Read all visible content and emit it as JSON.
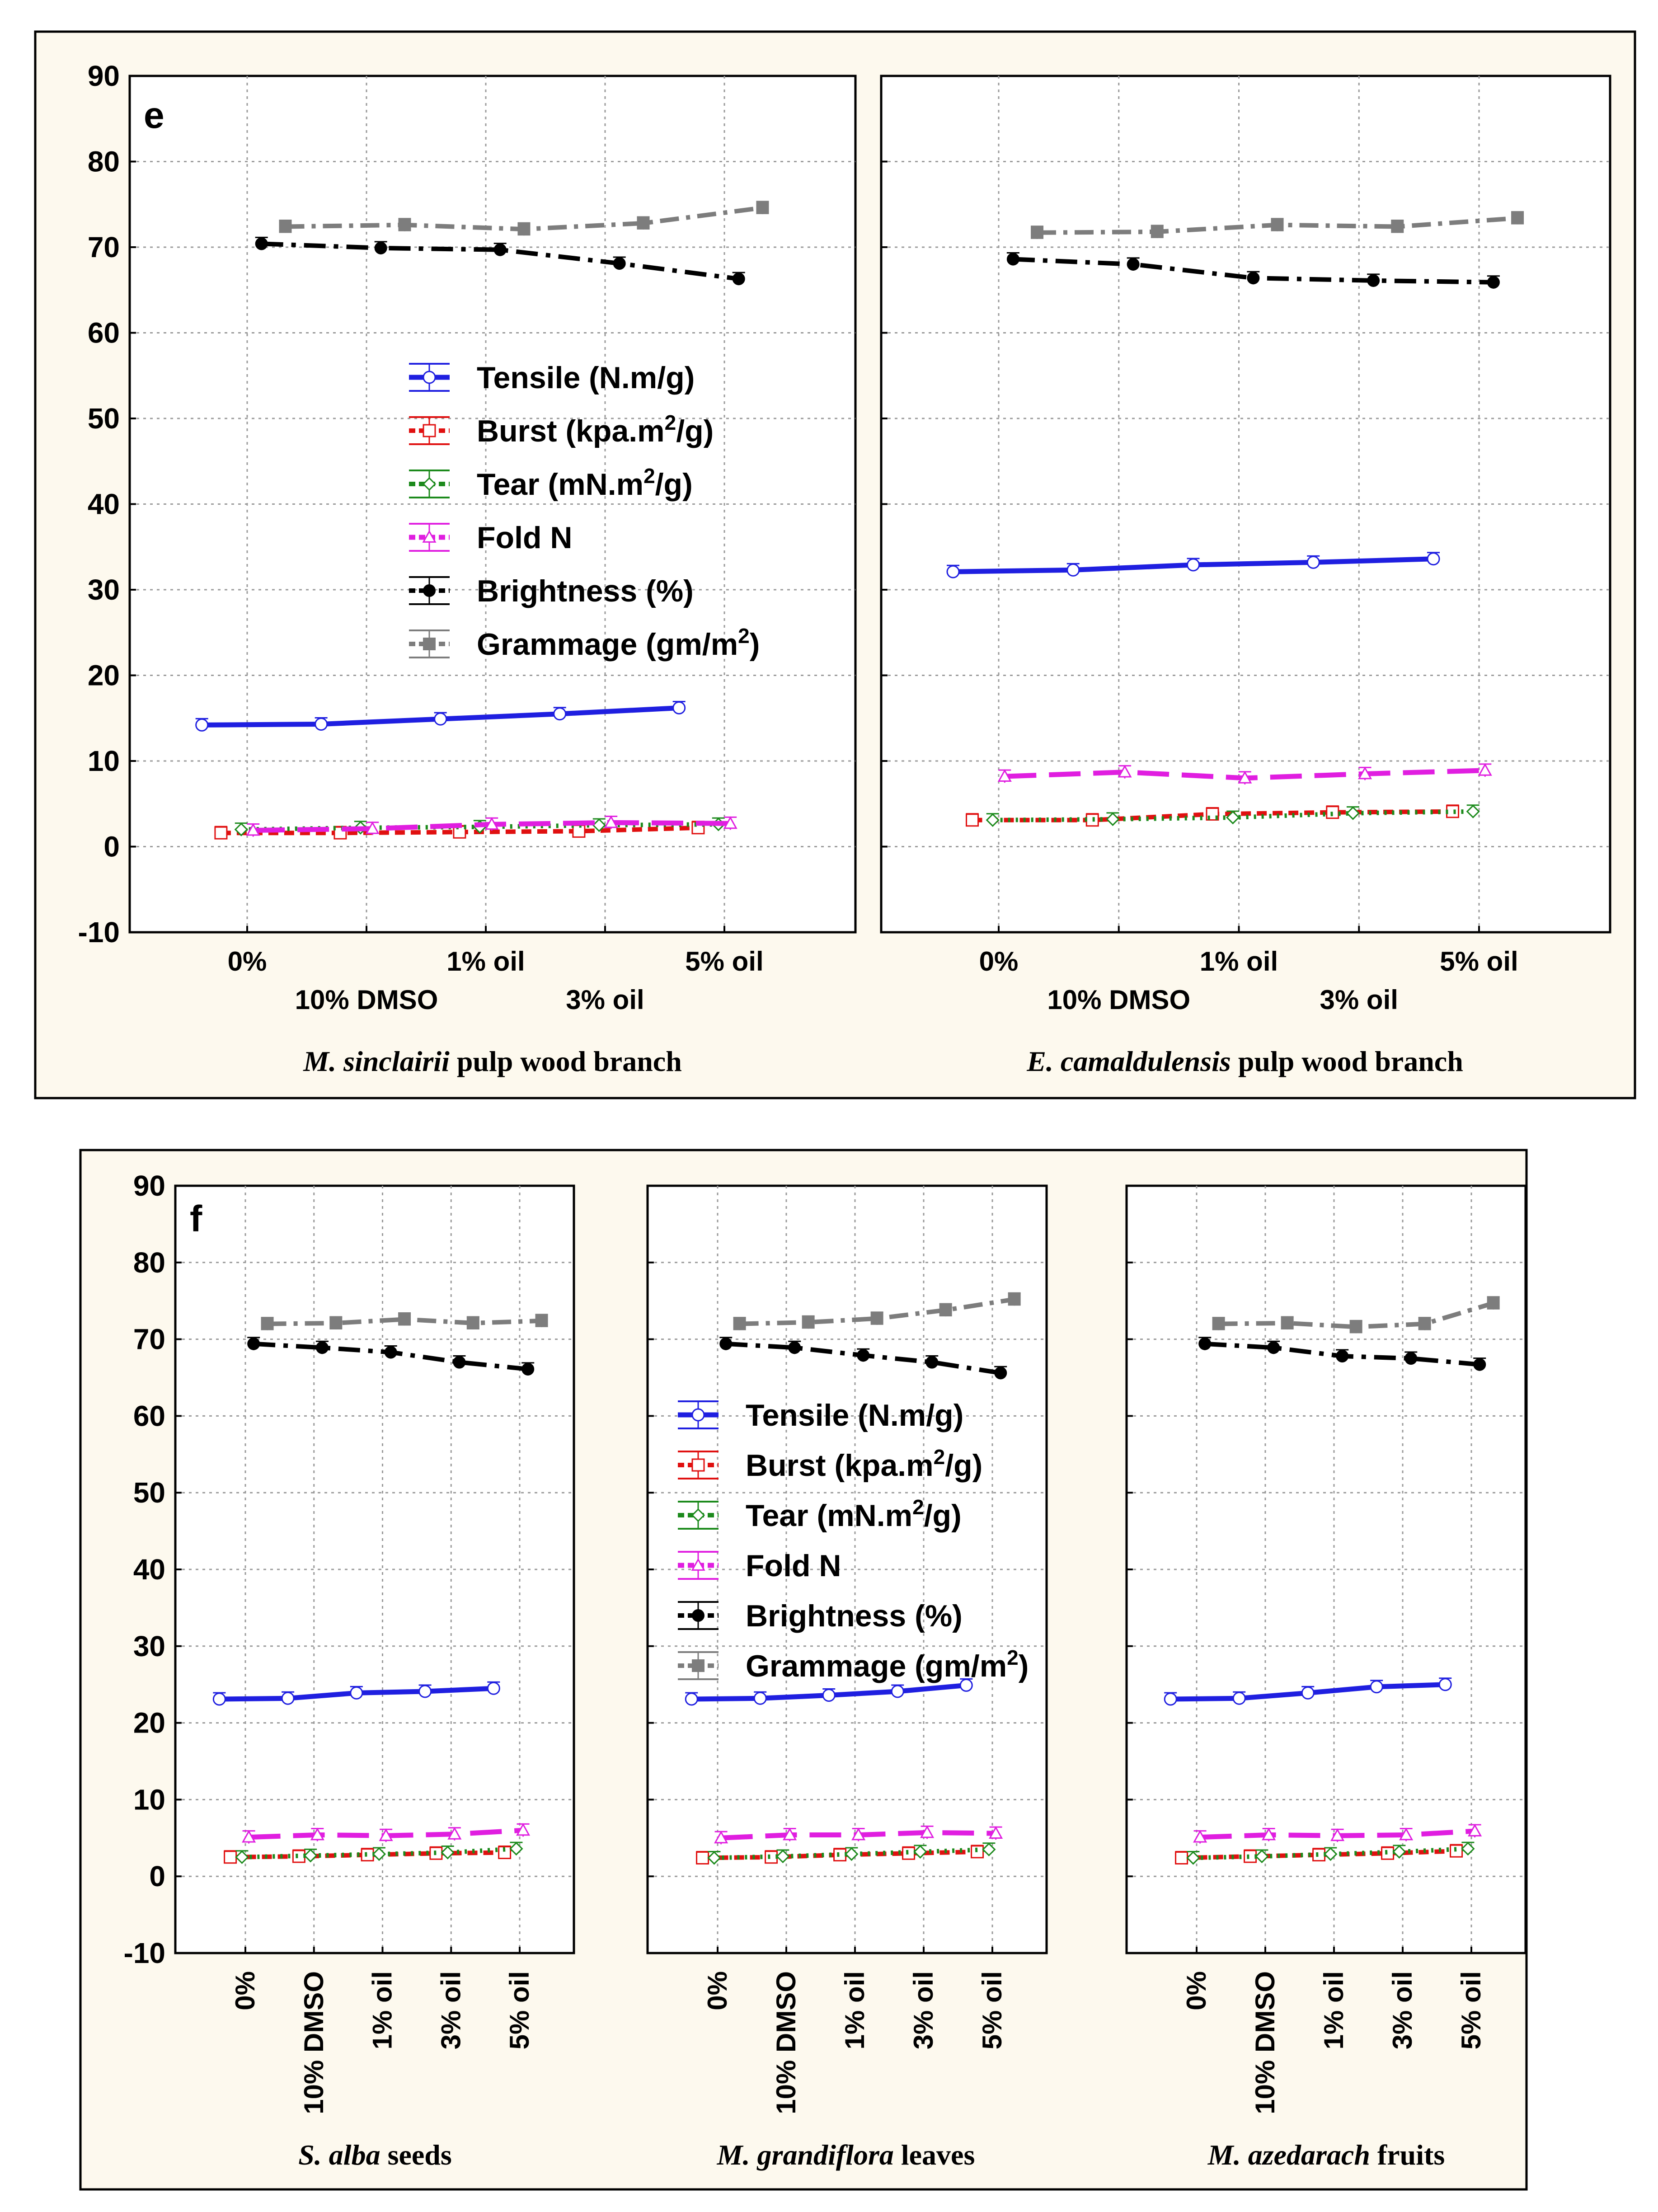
{
  "colors": {
    "Tensile": "#1f1fe0",
    "Burst": "#e01010",
    "Tear": "#1c8a1c",
    "Fold": "#e01ee0",
    "Brightness": "#000000",
    "Grammage": "#7d7d7d"
  },
  "figures": {
    "e": {
      "label": "e",
      "y_ticks": [
        "90",
        "80",
        "70",
        "60",
        "50",
        "40",
        "30",
        "20",
        "10",
        "0",
        "-10"
      ],
      "x_tick_labels": [
        "0%",
        "10% DMSO",
        "1% oil",
        "3% oil",
        "5% oil"
      ],
      "legend": [
        {
          "key": "Tensile",
          "text": "Tensile (N.m/g)",
          "sup": "",
          "after": ""
        },
        {
          "key": "Burst",
          "text": "Burst (kpa.m",
          "sup": "2",
          "after": "/g)"
        },
        {
          "key": "Tear",
          "text": "Tear (mN.m",
          "sup": "2",
          "after": "/g)"
        },
        {
          "key": "Fold",
          "text": "Fold N",
          "sup": "",
          "after": ""
        },
        {
          "key": "Brightness",
          "text": "Brightness (%)",
          "sup": "",
          "after": ""
        },
        {
          "key": "Grammage",
          "text": "Grammage (gm/m",
          "sup": "2",
          "after": ")"
        }
      ],
      "panels": [
        {
          "italic": "M. sinclairii",
          "rest": " pulp wood branch"
        },
        {
          "italic": "E. camaldulensis",
          "rest": " pulp wood branch"
        }
      ]
    },
    "f": {
      "label": "f",
      "y_ticks": [
        "90",
        "80",
        "70",
        "60",
        "50",
        "40",
        "30",
        "20",
        "10",
        "0",
        "-10"
      ],
      "x_tick_labels": [
        "0%",
        "10% DMSO",
        "1% oil",
        "3% oil",
        "5% oil"
      ],
      "legend": [
        {
          "key": "Tensile",
          "text": "Tensile (N.m/g)",
          "sup": "",
          "after": ""
        },
        {
          "key": "Burst",
          "text": "Burst (kpa.m",
          "sup": "2",
          "after": "/g)"
        },
        {
          "key": "Tear",
          "text": "Tear (mN.m",
          "sup": "2",
          "after": "/g)"
        },
        {
          "key": "Fold",
          "text": "Fold N",
          "sup": "",
          "after": ""
        },
        {
          "key": "Brightness",
          "text": "Brightness (%)",
          "sup": "",
          "after": ""
        },
        {
          "key": "Grammage",
          "text": "Grammage (gm/m",
          "sup": "2",
          "after": ")"
        }
      ],
      "panels": [
        {
          "italic": "S. alba",
          "rest": " seeds"
        },
        {
          "italic": "M. grandiflora",
          "rest": " leaves"
        },
        {
          "italic": "M. azedarach",
          "rest": " fruits"
        }
      ]
    }
  },
  "chart_data": [
    {
      "type": "line",
      "figure": "e",
      "panel": "M. sinclairii pulp wood branch",
      "categories": [
        "0%",
        "10% DMSO",
        "1% oil",
        "3% oil",
        "5% oil"
      ],
      "ylim": [
        -10,
        90
      ],
      "series": [
        {
          "name": "Tensile (N.m/g)",
          "values": [
            14.2,
            14.3,
            14.9,
            15.5,
            16.2
          ]
        },
        {
          "name": "Burst (kpa.m2/g)",
          "values": [
            1.6,
            1.6,
            1.7,
            1.8,
            2.2
          ]
        },
        {
          "name": "Tear (mN.m2/g)",
          "values": [
            2.0,
            2.2,
            2.3,
            2.5,
            2.6
          ]
        },
        {
          "name": "Fold N",
          "values": [
            1.9,
            2.1,
            2.6,
            2.8,
            2.7
          ]
        },
        {
          "name": "Brightness (%)",
          "values": [
            70.4,
            69.9,
            69.7,
            68.1,
            66.3
          ]
        },
        {
          "name": "Grammage (gm/m2)",
          "values": [
            72.4,
            72.6,
            72.1,
            72.8,
            74.6
          ]
        }
      ]
    },
    {
      "type": "line",
      "figure": "e",
      "panel": "E. camaldulensis pulp wood branch",
      "categories": [
        "0%",
        "10% DMSO",
        "1% oil",
        "3% oil",
        "5% oil"
      ],
      "ylim": [
        -10,
        90
      ],
      "series": [
        {
          "name": "Tensile (N.m/g)",
          "values": [
            32.1,
            32.3,
            32.9,
            33.2,
            33.6
          ]
        },
        {
          "name": "Burst (kpa.m2/g)",
          "values": [
            3.1,
            3.1,
            3.8,
            4.0,
            4.1
          ]
        },
        {
          "name": "Tear (mN.m2/g)",
          "values": [
            3.1,
            3.2,
            3.4,
            3.9,
            4.1
          ]
        },
        {
          "name": "Fold N",
          "values": [
            8.2,
            8.7,
            8.0,
            8.5,
            8.9
          ]
        },
        {
          "name": "Brightness (%)",
          "values": [
            68.6,
            68.0,
            66.4,
            66.1,
            65.9
          ]
        },
        {
          "name": "Grammage (gm/m2)",
          "values": [
            71.7,
            71.8,
            72.6,
            72.4,
            73.4
          ]
        }
      ]
    },
    {
      "type": "line",
      "figure": "f",
      "panel": "S. alba seeds",
      "categories": [
        "0%",
        "10% DMSO",
        "1% oil",
        "3% oil",
        "5% oil"
      ],
      "ylim": [
        -10,
        90
      ],
      "series": [
        {
          "name": "Tensile (N.m/g)",
          "values": [
            23.1,
            23.2,
            23.9,
            24.1,
            24.5
          ]
        },
        {
          "name": "Burst (kpa.m2/g)",
          "values": [
            2.5,
            2.6,
            2.8,
            3.0,
            3.1
          ]
        },
        {
          "name": "Tear (mN.m2/g)",
          "values": [
            2.5,
            2.7,
            2.9,
            3.1,
            3.6
          ]
        },
        {
          "name": "Fold N",
          "values": [
            5.1,
            5.4,
            5.3,
            5.5,
            6.0
          ]
        },
        {
          "name": "Brightness (%)",
          "values": [
            69.4,
            68.9,
            68.3,
            67.0,
            66.1
          ]
        },
        {
          "name": "Grammage (gm/m2)",
          "values": [
            72.0,
            72.1,
            72.6,
            72.1,
            72.4
          ]
        }
      ]
    },
    {
      "type": "line",
      "figure": "f",
      "panel": "M. grandiflora leaves",
      "categories": [
        "0%",
        "10% DMSO",
        "1% oil",
        "3% oil",
        "5% oil"
      ],
      "ylim": [
        -10,
        90
      ],
      "series": [
        {
          "name": "Tensile (N.m/g)",
          "values": [
            23.1,
            23.2,
            23.6,
            24.1,
            24.9
          ]
        },
        {
          "name": "Burst (kpa.m2/g)",
          "values": [
            2.4,
            2.5,
            2.8,
            3.0,
            3.2
          ]
        },
        {
          "name": "Tear (mN.m2/g)",
          "values": [
            2.4,
            2.6,
            2.9,
            3.2,
            3.5
          ]
        },
        {
          "name": "Fold N",
          "values": [
            5.0,
            5.4,
            5.4,
            5.7,
            5.6
          ]
        },
        {
          "name": "Brightness (%)",
          "values": [
            69.4,
            68.9,
            67.9,
            67.0,
            65.6
          ]
        },
        {
          "name": "Grammage (gm/m2)",
          "values": [
            72.0,
            72.2,
            72.7,
            73.8,
            75.2
          ]
        }
      ]
    },
    {
      "type": "line",
      "figure": "f",
      "panel": "M. azedarach fruits",
      "categories": [
        "0%",
        "10% DMSO",
        "1% oil",
        "3% oil",
        "5% oil"
      ],
      "ylim": [
        -10,
        90
      ],
      "series": [
        {
          "name": "Tensile (N.m/g)",
          "values": [
            23.1,
            23.2,
            23.9,
            24.7,
            25.0
          ]
        },
        {
          "name": "Burst (kpa.m2/g)",
          "values": [
            2.4,
            2.6,
            2.8,
            3.0,
            3.3
          ]
        },
        {
          "name": "Tear (mN.m2/g)",
          "values": [
            2.4,
            2.6,
            2.9,
            3.2,
            3.6
          ]
        },
        {
          "name": "Fold N",
          "values": [
            5.1,
            5.4,
            5.3,
            5.4,
            5.9
          ]
        },
        {
          "name": "Brightness (%)",
          "values": [
            69.4,
            68.9,
            67.8,
            67.5,
            66.7
          ]
        },
        {
          "name": "Grammage (gm/m2)",
          "values": [
            72.0,
            72.1,
            71.6,
            72.0,
            74.7
          ]
        }
      ]
    }
  ]
}
